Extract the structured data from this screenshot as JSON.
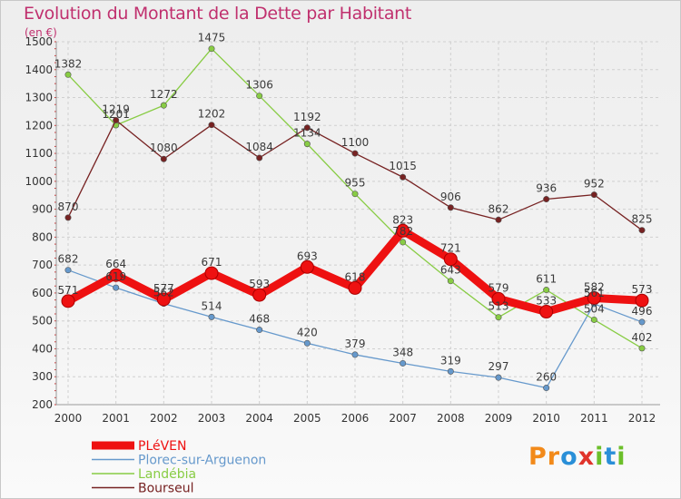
{
  "header": {
    "title": "Evolution du Montant de la Dette par Habitant",
    "subtitle": "(en €)"
  },
  "logo": {
    "text": "Proxiti",
    "letters": [
      "P",
      "r",
      "o",
      "x",
      "i",
      "t",
      "i"
    ],
    "colors": [
      "#f28a1a",
      "#f28a1a",
      "#2a8fd8",
      "#e0332b",
      "#6cbf2a",
      "#2a8fd8",
      "#6cbf2a"
    ]
  },
  "chart_data": {
    "type": "line",
    "title": "Evolution du Montant de la Dette par Habitant",
    "subtitle": "(en €)",
    "x": [
      "2000",
      "2001",
      "2002",
      "2003",
      "2004",
      "2005",
      "2006",
      "2007",
      "2008",
      "2009",
      "2010",
      "2011",
      "2012"
    ],
    "ylim": [
      200,
      1500
    ],
    "yticks": [
      200,
      300,
      400,
      500,
      600,
      700,
      800,
      900,
      1000,
      1100,
      1200,
      1300,
      1400,
      1500
    ],
    "grid": true,
    "legend_position": "bottom-left",
    "series": [
      {
        "name": "PLéVEN",
        "color": "#ee1111",
        "values": [
          571,
          664,
          577,
          671,
          593,
          693,
          618,
          823,
          721,
          579,
          533,
          582,
          573
        ],
        "labels": [
          "571",
          "664",
          "577",
          "671",
          "593",
          "693",
          "618",
          "823",
          "721",
          "579",
          "533",
          "582",
          "573"
        ]
      },
      {
        "name": "Plorec-sur-Arguenon",
        "color": "#6699cc",
        "values": [
          682,
          619,
          562,
          514,
          468,
          420,
          379,
          348,
          319,
          297,
          260,
          561,
          496
        ],
        "labels": [
          "682",
          "619",
          "562",
          "514",
          "468",
          "420",
          "379",
          "348",
          "319",
          "297",
          "260",
          "561",
          "496"
        ]
      },
      {
        "name": "Landébia",
        "color": "#88cc44",
        "values": [
          1382,
          1201,
          1272,
          1475,
          1306,
          1134,
          955,
          782,
          643,
          513,
          611,
          504,
          402
        ],
        "labels": [
          "1382",
          "1201",
          "1272",
          "1475",
          "1306",
          "1134",
          "955",
          "782",
          "643",
          "513",
          "611",
          "504",
          "402"
        ]
      },
      {
        "name": "Bourseul",
        "color": "#772222",
        "values": [
          870,
          1219,
          1080,
          1202,
          1084,
          1192,
          1100,
          1015,
          906,
          862,
          936,
          952,
          825
        ],
        "labels": [
          "870",
          "1219",
          "1080",
          "1202",
          "1084",
          "1192",
          "1100",
          "1015",
          "906",
          "862",
          "936",
          "952",
          "825"
        ]
      }
    ]
  }
}
